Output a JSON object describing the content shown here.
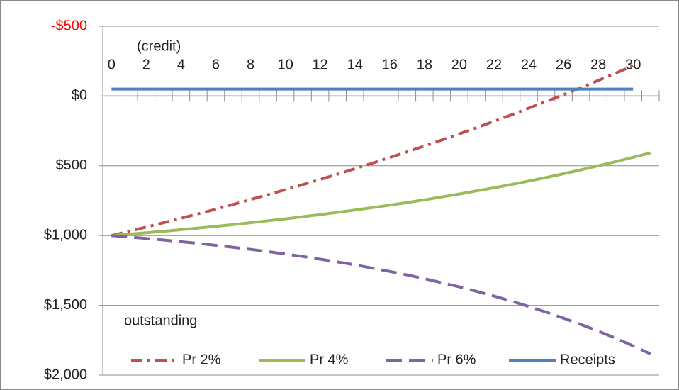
{
  "chart_data": {
    "type": "line",
    "annotations": [
      "(credit)",
      "outstanding"
    ],
    "categories": [
      0,
      null,
      2,
      null,
      4,
      null,
      6,
      null,
      8,
      null,
      10,
      null,
      12,
      null,
      14,
      null,
      16,
      null,
      18,
      null,
      20,
      null,
      22,
      null,
      24,
      null,
      26,
      null,
      28,
      null,
      30,
      null
    ],
    "series": [
      {
        "name": "Pr 2%",
        "color": "#c0504d",
        "dash": "dash-dot",
        "values": [
          1000,
          970,
          939,
          908,
          876,
          844,
          811,
          777,
          742,
          707,
          671,
          635,
          598,
          560,
          521,
          481,
          441,
          400,
          358,
          315,
          271,
          227,
          181,
          135,
          87,
          39,
          -10,
          -60,
          -112,
          -164,
          -217,
          null
        ]
      },
      {
        "name": "Pr 4%",
        "color": "#9bbb59",
        "dash": "solid",
        "values": [
          1000,
          990,
          980,
          969,
          958,
          946,
          934,
          921,
          908,
          894,
          880,
          865,
          850,
          834,
          817,
          800,
          782,
          763,
          744,
          723,
          702,
          680,
          658,
          634,
          609,
          584,
          557,
          529,
          500,
          470,
          439,
          407
        ]
      },
      {
        "name": "Pr 6%",
        "color": "#8064a2",
        "dash": "dash",
        "values": [
          1000,
          1010,
          1021,
          1032,
          1044,
          1056,
          1070,
          1084,
          1099,
          1115,
          1132,
          1150,
          1169,
          1189,
          1210,
          1233,
          1257,
          1282,
          1309,
          1338,
          1368,
          1400,
          1434,
          1470,
          1508,
          1549,
          1592,
          1637,
          1685,
          1736,
          1791,
          1848
        ]
      },
      {
        "name": "Receipts",
        "color": "#4f81bd",
        "dash": "solid",
        "values": [
          -50,
          -50,
          -50,
          -50,
          -50,
          -50,
          -50,
          -50,
          -50,
          -50,
          -50,
          -50,
          -50,
          -50,
          -50,
          -50,
          -50,
          -50,
          -50,
          -50,
          -50,
          -50,
          -50,
          -50,
          -50,
          -50,
          -50,
          -50,
          -50,
          -50,
          -50,
          null
        ]
      }
    ],
    "ylim": [
      -500,
      2000
    ],
    "y_reversed": true,
    "yticks": [
      {
        "value": -500,
        "label": "-$500"
      },
      {
        "value": 0,
        "label": "$0"
      },
      {
        "value": 500,
        "label": "$500"
      },
      {
        "value": 1000,
        "label": "$1,000"
      },
      {
        "value": 1500,
        "label": "$1,500"
      },
      {
        "value": 2000,
        "label": "$2,000"
      }
    ],
    "negative_label_color": "#ff0000",
    "grid": true,
    "legend": "bottom"
  }
}
